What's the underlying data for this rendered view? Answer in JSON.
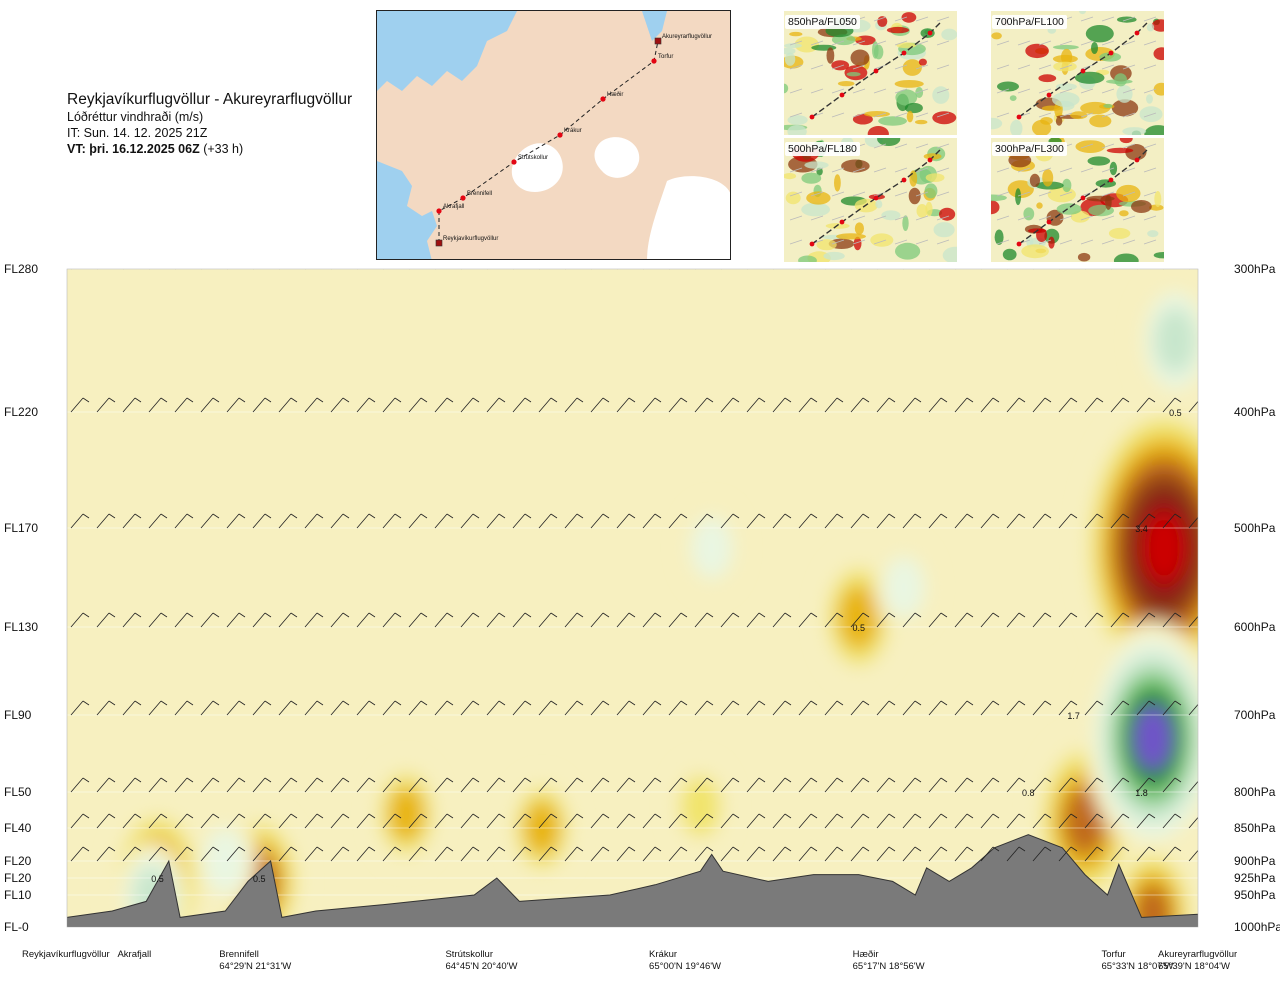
{
  "header": {
    "route": "Reykjavíkurflugvöllur - Akureyrarflugvöllur",
    "field": "Lóðréttur vindhraði (m/s)",
    "issue_time": "IT: Sun. 14. 12. 2025 21Z",
    "valid_time_bold": "VT: þri. 16.12.2025 06Z",
    "valid_time_offset": "(+33 h)"
  },
  "route_map": {
    "stations": [
      "Akureyrarflugvöllur",
      "Torfur",
      "Hæðir",
      "Krákur",
      "Strútskollur",
      "Brennifell",
      "Akrafjall",
      "Reykjavíkurflugvöllur"
    ],
    "colors": {
      "land": "#f3d9c2",
      "sea": "#9fd0ef",
      "ice": "#ffffff",
      "route": "#222222",
      "waypoint": "#e30613"
    }
  },
  "thumbnails": [
    {
      "label": "850hPa/FL050"
    },
    {
      "label": "700hPa/FL100"
    },
    {
      "label": "500hPa/FL180"
    },
    {
      "label": "300hPa/FL300"
    }
  ],
  "chart_data": {
    "type": "heatmap",
    "title": "Reykjavíkurflugvöllur - Akureyrarflugvöllur",
    "subtitle": "Lóðréttur vindhraði (m/s)",
    "x_axis": {
      "stations": [
        {
          "name": "Reykjavíkurflugvöllur",
          "coord": ""
        },
        {
          "name": "Akrafjall",
          "coord": ""
        },
        {
          "name": "Brennifell",
          "coord": "64°29'N 21°31'W"
        },
        {
          "name": "Strútskollur",
          "coord": "64°45'N 20°40'W"
        },
        {
          "name": "Krákur",
          "coord": "65°00'N 19°46'W"
        },
        {
          "name": "Hæðir",
          "coord": "65°17'N 18°56'W"
        },
        {
          "name": "Torfur",
          "coord": "65°33'N 18°07'W"
        },
        {
          "name": "Akureyrarflugvöllur",
          "coord": "65°39'N 18°04'W"
        }
      ],
      "route_fraction": [
        0.0,
        0.08,
        0.17,
        0.37,
        0.55,
        0.73,
        0.95,
        1.0
      ]
    },
    "y_axis": {
      "left_flight_levels": [
        "FL280",
        "FL220",
        "FL170",
        "FL130",
        "FL90",
        "FL50",
        "FL40",
        "FL20",
        "FL20",
        "FL10",
        "FL-0"
      ],
      "right_pressure_levels": [
        "300hPa",
        "400hPa",
        "500hPa",
        "600hPa",
        "700hPa",
        "800hPa",
        "850hPa",
        "900hPa",
        "925hPa",
        "950hPa",
        "1000hPa"
      ],
      "pressure_hpa": [
        300,
        400,
        500,
        600,
        700,
        800,
        850,
        900,
        925,
        950,
        1000
      ]
    },
    "color_levels_ms": [
      -3.0,
      -2.0,
      -1.5,
      -1.0,
      -0.5,
      -0.2,
      0.0,
      0.2,
      0.5,
      1.0,
      1.5,
      2.0
    ],
    "color_scale": [
      "#cc0000",
      "#8e1414",
      "#8c3a12",
      "#c06a1e",
      "#e8b410",
      "#f1e46c",
      "#f7f0c0",
      "#e9f6e2",
      "#c8e6cc",
      "#7ec97b",
      "#1f8a2c",
      "#6f55c8"
    ],
    "features": [
      {
        "x": 0.08,
        "p": 930,
        "w": -1.2
      },
      {
        "x": 0.17,
        "p": 930,
        "w": -1.0
      },
      {
        "x": 0.075,
        "p": 950,
        "w": 0.5
      },
      {
        "x": 0.14,
        "p": 900,
        "w": 0.4
      },
      {
        "x": 0.3,
        "p": 830,
        "w": -0.5
      },
      {
        "x": 0.42,
        "p": 850,
        "w": -0.5
      },
      {
        "x": 0.56,
        "p": 820,
        "w": -0.3
      },
      {
        "x": 0.57,
        "p": 520,
        "w": 0.3
      },
      {
        "x": 0.7,
        "p": 590,
        "w": -0.8
      },
      {
        "x": 0.74,
        "p": 560,
        "w": 0.3
      },
      {
        "x": 0.9,
        "p": 840,
        "w": -1.4
      },
      {
        "x": 0.97,
        "p": 520,
        "w": -3.0
      },
      {
        "x": 0.96,
        "p": 730,
        "w": 2.2
      },
      {
        "x": 0.98,
        "p": 350,
        "w": 0.8
      },
      {
        "x": 0.96,
        "p": 980,
        "w": -1.0
      }
    ],
    "annotations": [
      {
        "text": "0.5",
        "x": 0.08,
        "p": 925
      },
      {
        "text": "0.5",
        "x": 0.17,
        "p": 925
      },
      {
        "text": "0.5",
        "x": 0.7,
        "p": 600
      },
      {
        "text": "0.8",
        "x": 0.85,
        "p": 800
      },
      {
        "text": "1.7",
        "x": 0.89,
        "p": 700
      },
      {
        "text": "1.8",
        "x": 0.95,
        "p": 800
      },
      {
        "text": "0.5",
        "x": 0.98,
        "p": 400
      },
      {
        "text": "3.4",
        "x": 0.95,
        "p": 500
      }
    ],
    "terrain_hpa": [
      [
        0.0,
        985
      ],
      [
        0.04,
        975
      ],
      [
        0.07,
        960
      ],
      [
        0.09,
        900
      ],
      [
        0.1,
        985
      ],
      [
        0.14,
        975
      ],
      [
        0.16,
        930
      ],
      [
        0.18,
        900
      ],
      [
        0.19,
        985
      ],
      [
        0.22,
        975
      ],
      [
        0.28,
        965
      ],
      [
        0.36,
        950
      ],
      [
        0.38,
        925
      ],
      [
        0.4,
        960
      ],
      [
        0.48,
        950
      ],
      [
        0.52,
        935
      ],
      [
        0.56,
        915
      ],
      [
        0.57,
        890
      ],
      [
        0.58,
        915
      ],
      [
        0.62,
        930
      ],
      [
        0.66,
        920
      ],
      [
        0.7,
        920
      ],
      [
        0.73,
        930
      ],
      [
        0.75,
        950
      ],
      [
        0.76,
        910
      ],
      [
        0.78,
        930
      ],
      [
        0.8,
        910
      ],
      [
        0.82,
        880
      ],
      [
        0.85,
        860
      ],
      [
        0.88,
        880
      ],
      [
        0.9,
        920
      ],
      [
        0.92,
        950
      ],
      [
        0.93,
        905
      ],
      [
        0.95,
        985
      ],
      [
        1.0,
        980
      ]
    ],
    "grid": true
  }
}
